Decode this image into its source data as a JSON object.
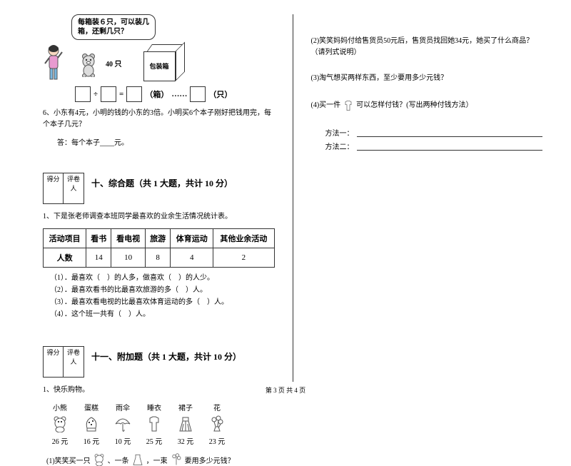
{
  "scene": {
    "bubble_text": "每箱装６只，可以装几\n箱，还剩几只？",
    "count_label": "40 只",
    "box_label": "包装箱",
    "eq_units": {
      "box": "（箱）",
      "dots": "……",
      "remain": "（只）"
    }
  },
  "q6": {
    "text": "6、小东有4元，小明的钱的小东的3倍。小明买6个本子刚好把钱用完，每个本子几元？",
    "answer": "答：每个本子____元。"
  },
  "section10": {
    "title": "十、综合题（共 1 大题，共计 10 分）",
    "intro": "1、下是张老师调查本班同学最喜欢的业余生活情况统计表。",
    "table": {
      "header_label": "活动项目",
      "row_label": "人数",
      "columns": [
        "看书",
        "看电视",
        "旅游",
        "体育运动",
        "其他业余活动"
      ],
      "values": [
        "14",
        "10",
        "8",
        "4",
        "2"
      ]
    },
    "subq": [
      "（1）．最喜欢（　）的人多，做喜欢（　）的人少。",
      "（2）．最喜欢看书的比最喜欢旅游的多（　）人。",
      "（3）．最喜欢看电视的比最喜欢体育运动的多（　）人。",
      "（4）．这个班一共有（　）人。"
    ]
  },
  "section11": {
    "title": "十一、附加题（共 1 大题，共计 10 分）",
    "intro": "1、快乐购物。",
    "items": [
      {
        "name": "小熊",
        "price": "26 元"
      },
      {
        "name": "蛋糕",
        "price": "16 元"
      },
      {
        "name": "雨伞",
        "price": "10 元"
      },
      {
        "name": "睡衣",
        "price": "25 元"
      },
      {
        "name": "裙子",
        "price": "32 元"
      },
      {
        "name": "花",
        "price": "23 元"
      }
    ],
    "q1_parts": [
      "(1)笑笑买一只",
      "、一条",
      "，一束",
      "要用多少元钱？"
    ]
  },
  "right": {
    "q2": "(2)笑笑妈妈付给售货员50元后，售货员找回她34元，她买了什么商品？（请列式说明）",
    "q3": "(3)淘气想买两样东西，至少要用多少元钱？",
    "q4_before": "(4)买一件",
    "q4_after": "可以怎样付钱？(写出两种付钱方法）",
    "method1": "方法一：",
    "method2": "方法二："
  },
  "score_labels": {
    "a": "得分",
    "b": "评卷人"
  },
  "footer": "第 3 页 共 4 页",
  "colors": {
    "text": "#000000",
    "border": "#333333",
    "bg": "#ffffff"
  }
}
